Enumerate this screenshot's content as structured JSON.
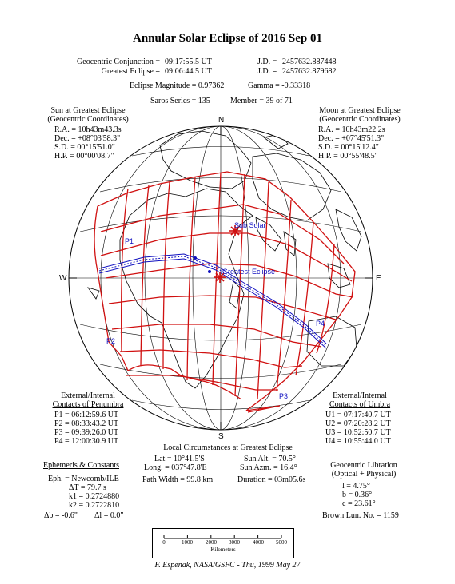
{
  "title": "Annular Solar Eclipse of 2016 Sep 01",
  "header": {
    "conj_label": "Geocentric Conjunction =",
    "conj_value": "09:17:55.5 UT",
    "conj_jd_label": "J.D. =",
    "conj_jd_value": "2457632.887448",
    "greatest_label": "Greatest Eclipse =",
    "greatest_value": "09:06:44.5 UT",
    "greatest_jd_label": "J.D. =",
    "greatest_jd_value": "2457632.879682",
    "magnitude": "Eclipse Magnitude = 0.97362",
    "gamma": "Gamma = -0.33318",
    "saros": "Saros Series = 135",
    "member": "Member = 39 of 71"
  },
  "sun": {
    "heading1": "Sun at Greatest Eclipse",
    "heading2": "(Geocentric Coordinates)",
    "rows": [
      "R.A. = 10h43m43.3s",
      "Dec. = +08°03'58.3\"",
      "S.D. = 00°15'51.0\"",
      "H.P. = 00°00'08.7\""
    ]
  },
  "moon": {
    "heading1": "Moon at Greatest Eclipse",
    "heading2": "(Geocentric Coordinates)",
    "rows": [
      "R.A. = 10h43m22.2s",
      "Dec. = +07°45'51.3\"",
      "S.D. = 00°15'12.4\"",
      "H.P. = 00°55'48.5\""
    ]
  },
  "compass": {
    "n": "N",
    "s": "S",
    "e": "E",
    "w": "W"
  },
  "map_labels": {
    "sub_solar": "Sub Solar",
    "greatest_eclipse": "Greatest Eclipse",
    "p1": "P1",
    "p2": "P2",
    "p3": "P3",
    "p4": "P4"
  },
  "penumbra": {
    "heading1": "External/Internal",
    "heading2": "Contacts of Penumbra",
    "rows": [
      "P1 = 06:12:59.6 UT",
      "P2 = 08:33:43.2 UT",
      "P3 = 09:39:26.0 UT",
      "P4 = 12:00:30.9 UT"
    ]
  },
  "umbra": {
    "heading1": "External/Internal",
    "heading2": "Contacts of Umbra",
    "rows": [
      "U1 = 07:17:40.7 UT",
      "U2 = 07:20:28.2 UT",
      "U3 = 10:52:50.7 UT",
      "U4 = 10:55:44.0 UT"
    ]
  },
  "local": {
    "heading": "Local Circumstances at Greatest Eclipse",
    "lat": "Lat = 10°41.5'S",
    "long": "Long. = 037°47.8'E",
    "sun_alt": "Sun Alt. = 70.5°",
    "sun_azm": "Sun Azm. = 16.4°",
    "path_width": "Path Width = 99.8 km",
    "duration": "Duration = 03m05.6s"
  },
  "ephemeris": {
    "heading": "Ephemeris & Constants",
    "eph": "Eph. = Newcomb/ILE",
    "dt": "ΔT = 79.7 s",
    "k1": "k1 = 0.2724880",
    "k2": "k2 = 0.2722810",
    "db": "Δb = -0.6\"",
    "dl": "Δl = 0.0\""
  },
  "libration": {
    "heading1": "Geocentric Libration",
    "heading2": "(Optical + Physical)",
    "l": "l = 4.75°",
    "b": "b = 0.36°",
    "c": "c = 23.61°",
    "brown": "Brown Lun. No. = 1159"
  },
  "scale": {
    "ticks": [
      "0",
      "1000",
      "2000",
      "3000",
      "4000",
      "5000"
    ],
    "unit": "Kilometers"
  },
  "credit": "F. Espenak, NASA/GSFC - Thu, 1999 May 27",
  "colors": {
    "path": "#d01010",
    "track": "#1010c0",
    "land": "#000000"
  }
}
